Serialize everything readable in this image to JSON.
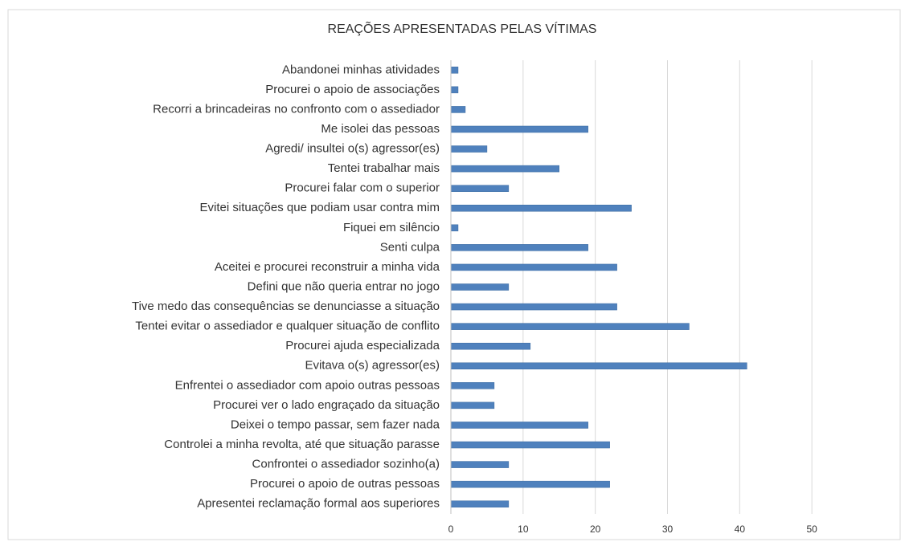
{
  "chart_data": {
    "type": "bar",
    "orientation": "horizontal",
    "title": "REAÇÕES APRESENTADAS PELAS VÍTIMAS",
    "categories": [
      "Abandonei minhas atividades",
      "Procurei o apoio de associações",
      "Recorri a brincadeiras no confronto com o assediador",
      "Me isolei das pessoas",
      "Agredi/ insultei o(s) agressor(es)",
      "Tentei trabalhar mais",
      "Procurei falar com o superior",
      "Evitei situações que podiam usar contra mim",
      "Fiquei em silêncio",
      "Senti culpa",
      "Aceitei e procurei reconstruir a minha vida",
      "Defini que não queria entrar no jogo",
      "Tive medo das consequências se denunciasse a situação",
      "Tentei evitar o assediador e qualquer situação de conflito",
      "Procurei ajuda especializada",
      "Evitava o(s) agressor(es)",
      "Enfrentei o assediador com apoio outras pessoas",
      "Procurei ver o lado engraçado da situação",
      "Deixei o tempo passar, sem fazer nada",
      "Controlei a minha revolta, até que situação parasse",
      "Confrontei o assediador sozinho(a)",
      "Procurei o apoio de outras pessoas",
      "Apresentei reclamação formal aos superiores"
    ],
    "values": [
      1,
      1,
      2,
      19,
      5,
      15,
      8,
      25,
      1,
      19,
      23,
      8,
      23,
      33,
      11,
      41,
      6,
      6,
      19,
      22,
      8,
      22,
      8
    ],
    "color": "#4f81bd",
    "xlim": [
      0,
      60
    ],
    "xticks": [
      0,
      10,
      20,
      30,
      40,
      50
    ],
    "grid": true
  }
}
